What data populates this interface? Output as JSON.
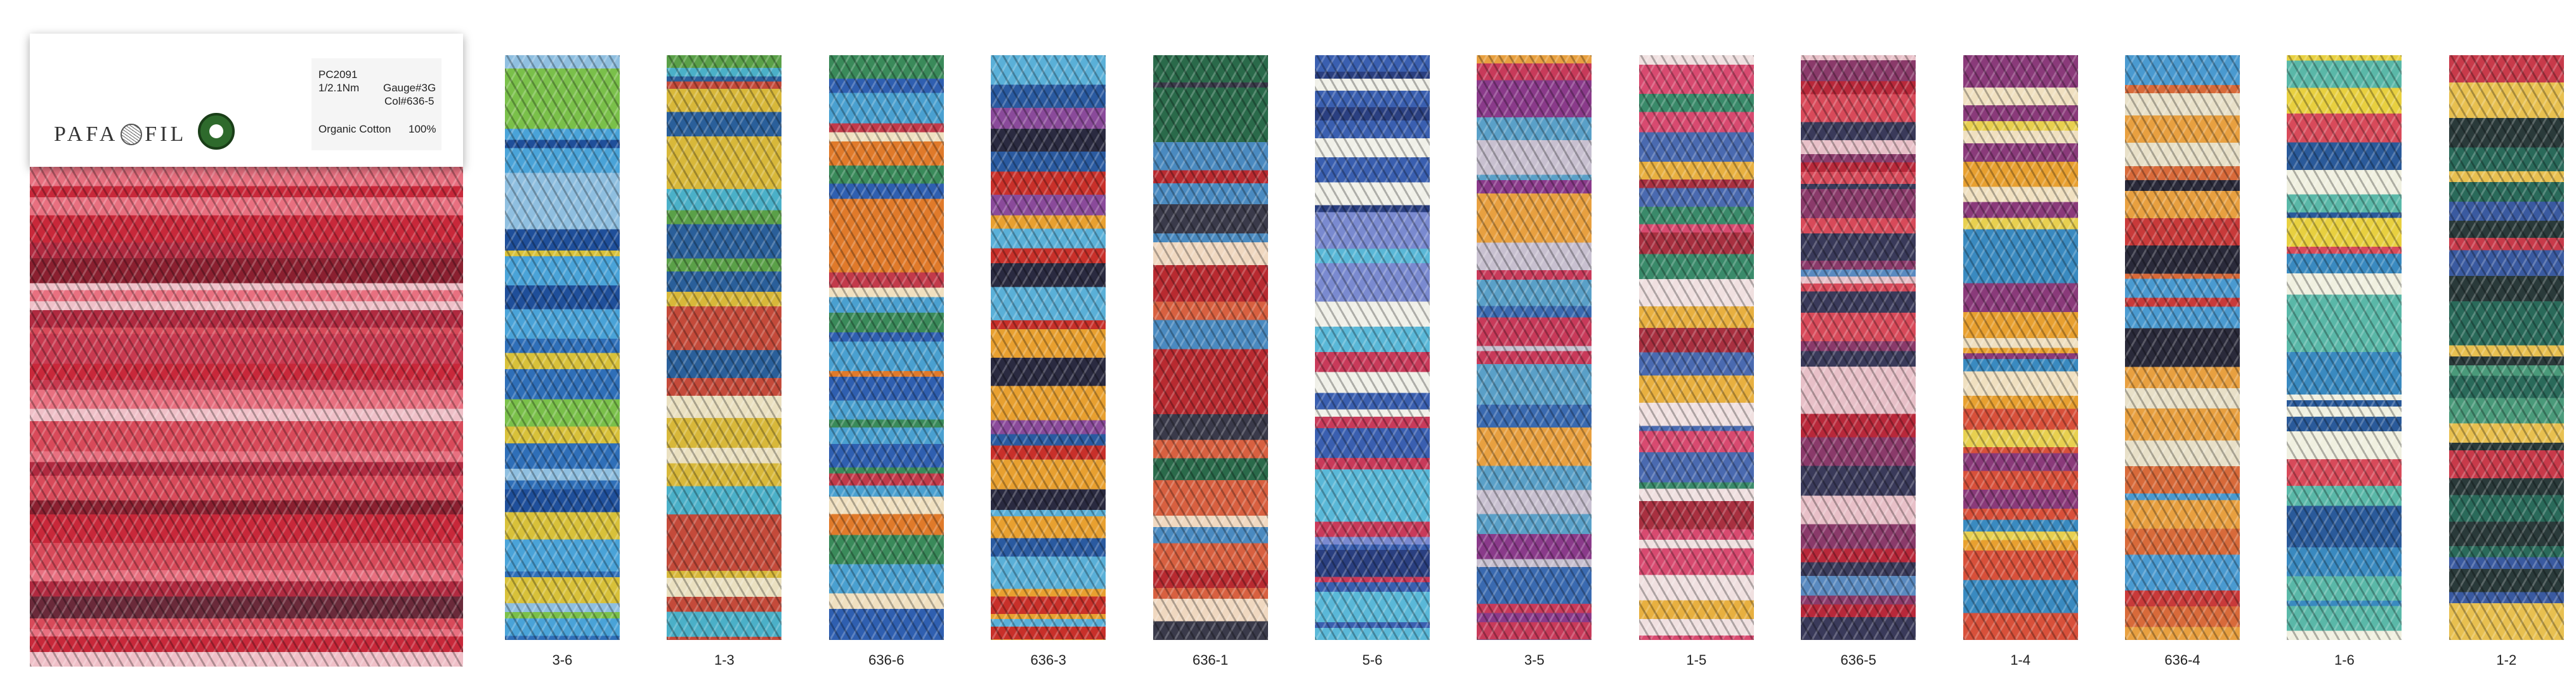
{
  "brand": {
    "left": "PAFA",
    "right": "FIL"
  },
  "info": {
    "code": "PC2091",
    "count": "1/2.1Nm",
    "gauge": "Gauge#3G",
    "color": "Col#636-5",
    "fiber": "Organic Cotton",
    "percent": "100%"
  },
  "swatches": [
    {
      "label": "3-6"
    },
    {
      "label": "1-3"
    },
    {
      "label": "636-6"
    },
    {
      "label": "636-3"
    },
    {
      "label": "636-1"
    },
    {
      "label": "5-6"
    },
    {
      "label": "3-5"
    },
    {
      "label": "1-5"
    },
    {
      "label": "636-5"
    },
    {
      "label": "1-4"
    },
    {
      "label": "636-4"
    },
    {
      "label": "1-6"
    },
    {
      "label": "1-2"
    }
  ]
}
